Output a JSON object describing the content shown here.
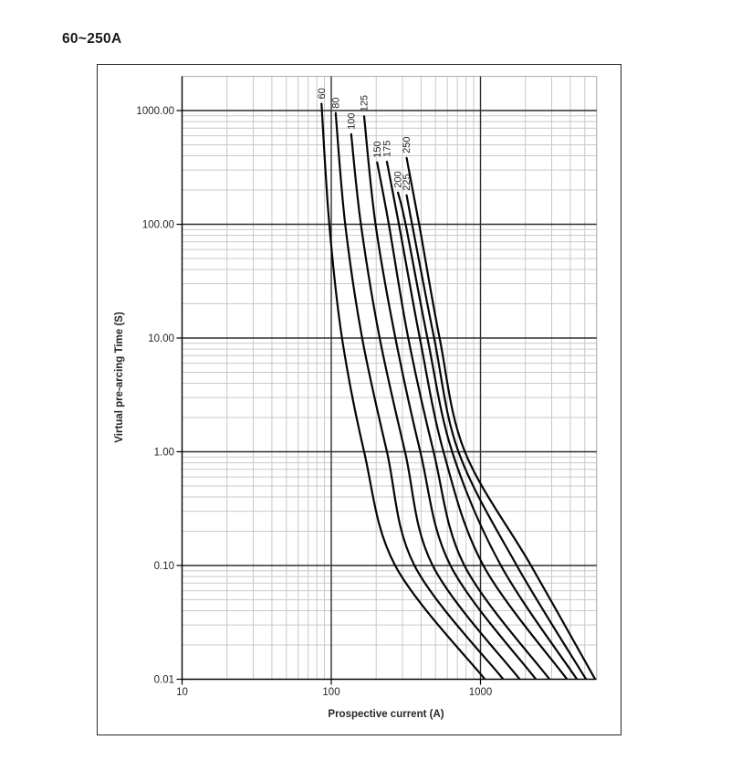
{
  "page": {
    "title": "60~250A"
  },
  "chart_data": {
    "type": "line",
    "title": "60~250A",
    "xlabel": "Prospective current (A)",
    "ylabel": "Virtual pre-arcing Time (S)",
    "x_scale": "log",
    "y_scale": "log",
    "xlim": [
      10,
      6000
    ],
    "ylim": [
      0.01,
      2000
    ],
    "grid": "log major + minor, both axes",
    "legend_position": "labels-at-curve-tops",
    "x_ticks": [
      {
        "value": 10,
        "label": "10"
      },
      {
        "value": 100,
        "label": "100"
      },
      {
        "value": 1000,
        "label": "1000"
      }
    ],
    "y_ticks": [
      {
        "value": 1000,
        "label": "1000.00"
      },
      {
        "value": 100,
        "label": "100.00"
      },
      {
        "value": 10,
        "label": "10.00"
      },
      {
        "value": 1,
        "label": "1.00"
      },
      {
        "value": 0.1,
        "label": "0.10"
      },
      {
        "value": 0.01,
        "label": "0.01"
      }
    ],
    "point_format": [
      "time_s",
      "current_A"
    ],
    "series": [
      {
        "name": "60",
        "points": [
          [
            1150,
            86
          ],
          [
            100,
            97
          ],
          [
            10,
            118
          ],
          [
            1,
            166
          ],
          [
            0.1,
            268
          ],
          [
            0.01,
            1070
          ]
        ]
      },
      {
        "name": "80",
        "points": [
          [
            950,
            107
          ],
          [
            100,
            124
          ],
          [
            10,
            161
          ],
          [
            1,
            236
          ],
          [
            0.1,
            361
          ],
          [
            0.01,
            1420
          ]
        ]
      },
      {
        "name": "100",
        "points": [
          [
            620,
            136
          ],
          [
            100,
            158
          ],
          [
            10,
            211
          ],
          [
            1,
            312
          ],
          [
            0.1,
            478
          ],
          [
            0.01,
            1830
          ]
        ]
      },
      {
        "name": "125",
        "points": [
          [
            890,
            166
          ],
          [
            100,
            198
          ],
          [
            10,
            269
          ],
          [
            1,
            395
          ],
          [
            0.1,
            629
          ],
          [
            0.01,
            2350
          ]
        ]
      },
      {
        "name": "150",
        "points": [
          [
            350,
            203
          ],
          [
            100,
            243
          ],
          [
            10,
            328
          ],
          [
            1,
            485
          ],
          [
            0.1,
            780
          ],
          [
            0.01,
            2900
          ]
        ]
      },
      {
        "name": "175",
        "points": [
          [
            355,
            236
          ],
          [
            100,
            284
          ],
          [
            10,
            392
          ],
          [
            1,
            565
          ],
          [
            0.1,
            1045
          ],
          [
            0.01,
            3800
          ]
        ]
      },
      {
        "name": "200",
        "points": [
          [
            190,
            280
          ],
          [
            100,
            315
          ],
          [
            10,
            441
          ],
          [
            1,
            646
          ],
          [
            0.1,
            1370
          ],
          [
            0.01,
            4430
          ]
        ]
      },
      {
        "name": "225",
        "points": [
          [
            180,
            320
          ],
          [
            100,
            348
          ],
          [
            10,
            489
          ],
          [
            1,
            712
          ],
          [
            0.1,
            1750
          ],
          [
            0.01,
            5100
          ]
        ]
      },
      {
        "name": "250",
        "points": [
          [
            383,
            320
          ],
          [
            100,
            388
          ],
          [
            10,
            532
          ],
          [
            1,
            786
          ],
          [
            0.1,
            2180
          ],
          [
            0.01,
            5870
          ]
        ]
      }
    ],
    "colors": {
      "curve": "#050505",
      "grid_major": "#2e2e2e",
      "grid_minor": "#c9c9c9",
      "axis": "#000000",
      "text": "#262626"
    }
  }
}
